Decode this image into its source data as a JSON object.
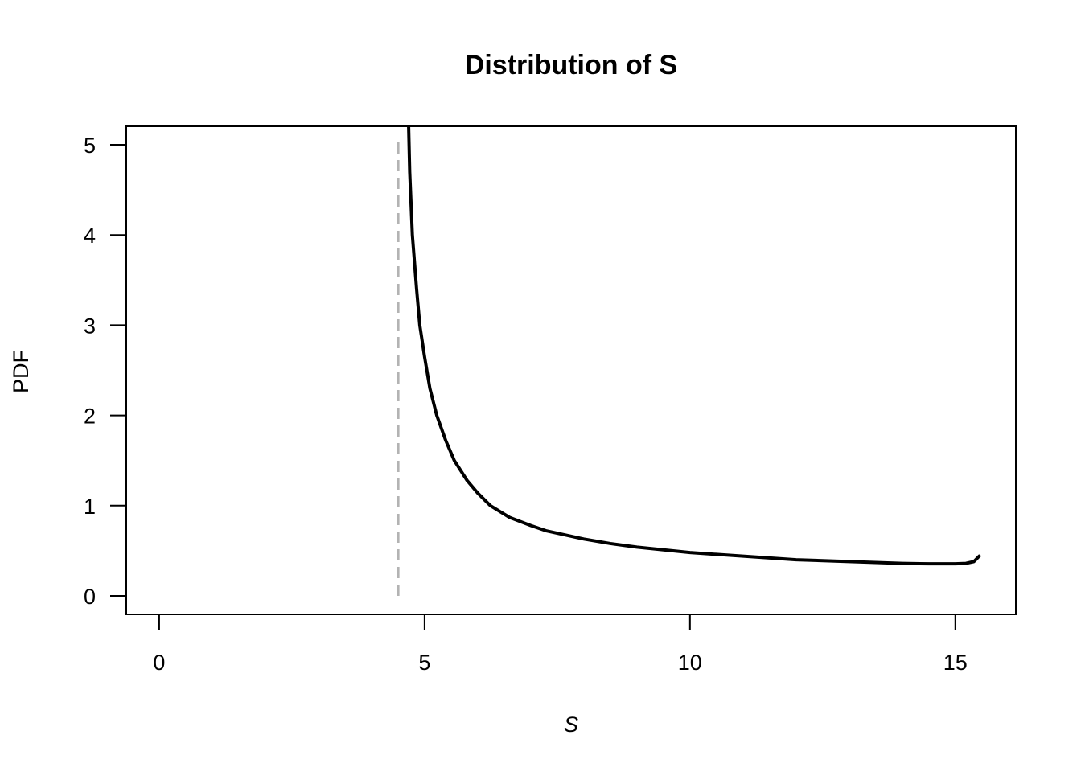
{
  "chart_data": {
    "type": "line",
    "title": "Distribution of S",
    "x_label": "S",
    "y_label": "PDF",
    "x": [
      4.7,
      4.72,
      4.77,
      4.85,
      4.91,
      5.0,
      5.1,
      5.23,
      5.4,
      5.56,
      5.8,
      6.0,
      6.24,
      6.6,
      7.0,
      7.3,
      8.0,
      8.5,
      9.0,
      10,
      11,
      12,
      13,
      14,
      14.5,
      15,
      15.2,
      15.35,
      15.45
    ],
    "values": [
      5.2,
      4.7,
      4.0,
      3.4,
      3.0,
      2.65,
      2.3,
      2.0,
      1.72,
      1.5,
      1.28,
      1.14,
      1.0,
      0.87,
      0.78,
      0.72,
      0.63,
      0.58,
      0.54,
      0.48,
      0.44,
      0.4,
      0.38,
      0.36,
      0.355,
      0.355,
      0.36,
      0.38,
      0.44
    ],
    "color": "#000000",
    "vline": {
      "x": 4.5,
      "y": [
        0,
        5.09
      ],
      "color": "#b3b3b3"
    },
    "xlim": [
      -0.62,
      16.14
    ],
    "xticks": [
      0,
      5,
      10,
      15
    ],
    "ylim": [
      -0.205,
      5.205
    ],
    "yticks": [
      0,
      1,
      2,
      3,
      4,
      5
    ]
  }
}
